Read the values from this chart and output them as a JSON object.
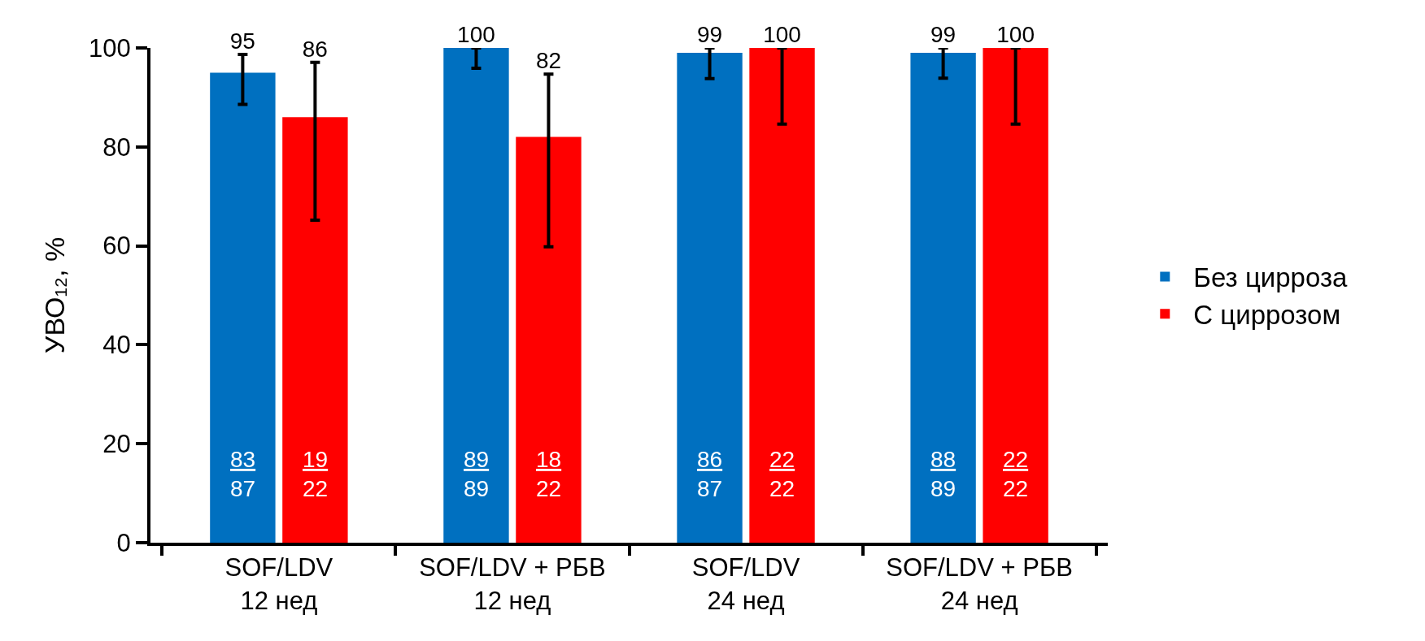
{
  "chart_data": {
    "type": "bar",
    "ylabel": "УВО₁₂, %",
    "categories": [
      "SOF/LDV\n12 нед",
      "SOF/LDV + РБВ\n12 нед",
      "SOF/LDV\n24 нед",
      "SOF/LDV + РБВ\n24 нед"
    ],
    "series": [
      {
        "name": "Без цирроза",
        "color": "#0070c0",
        "values": [
          95,
          100,
          99,
          99
        ],
        "errors": [
          [
            88.6,
            98.7
          ],
          [
            95.9,
            100
          ],
          [
            93.8,
            100
          ],
          [
            93.9,
            100
          ]
        ]
      },
      {
        "name": "С циррозом",
        "color": "#ff0000",
        "values": [
          86,
          82,
          100,
          100
        ],
        "errors": [
          [
            65.2,
            97.1
          ],
          [
            59.8,
            94.7
          ],
          [
            84.6,
            100
          ],
          [
            84.6,
            100
          ]
        ]
      }
    ],
    "annotations": [
      "83\n87",
      "19\n22",
      "89\n89",
      "18\n22",
      "86\n87",
      "22\n22",
      "88\n89",
      "22\n22"
    ],
    "ylim": [
      0,
      100
    ],
    "yticks": [
      0,
      20,
      40,
      60,
      80,
      100
    ],
    "grid": false,
    "legend": "right",
    "data_labels": true
  }
}
